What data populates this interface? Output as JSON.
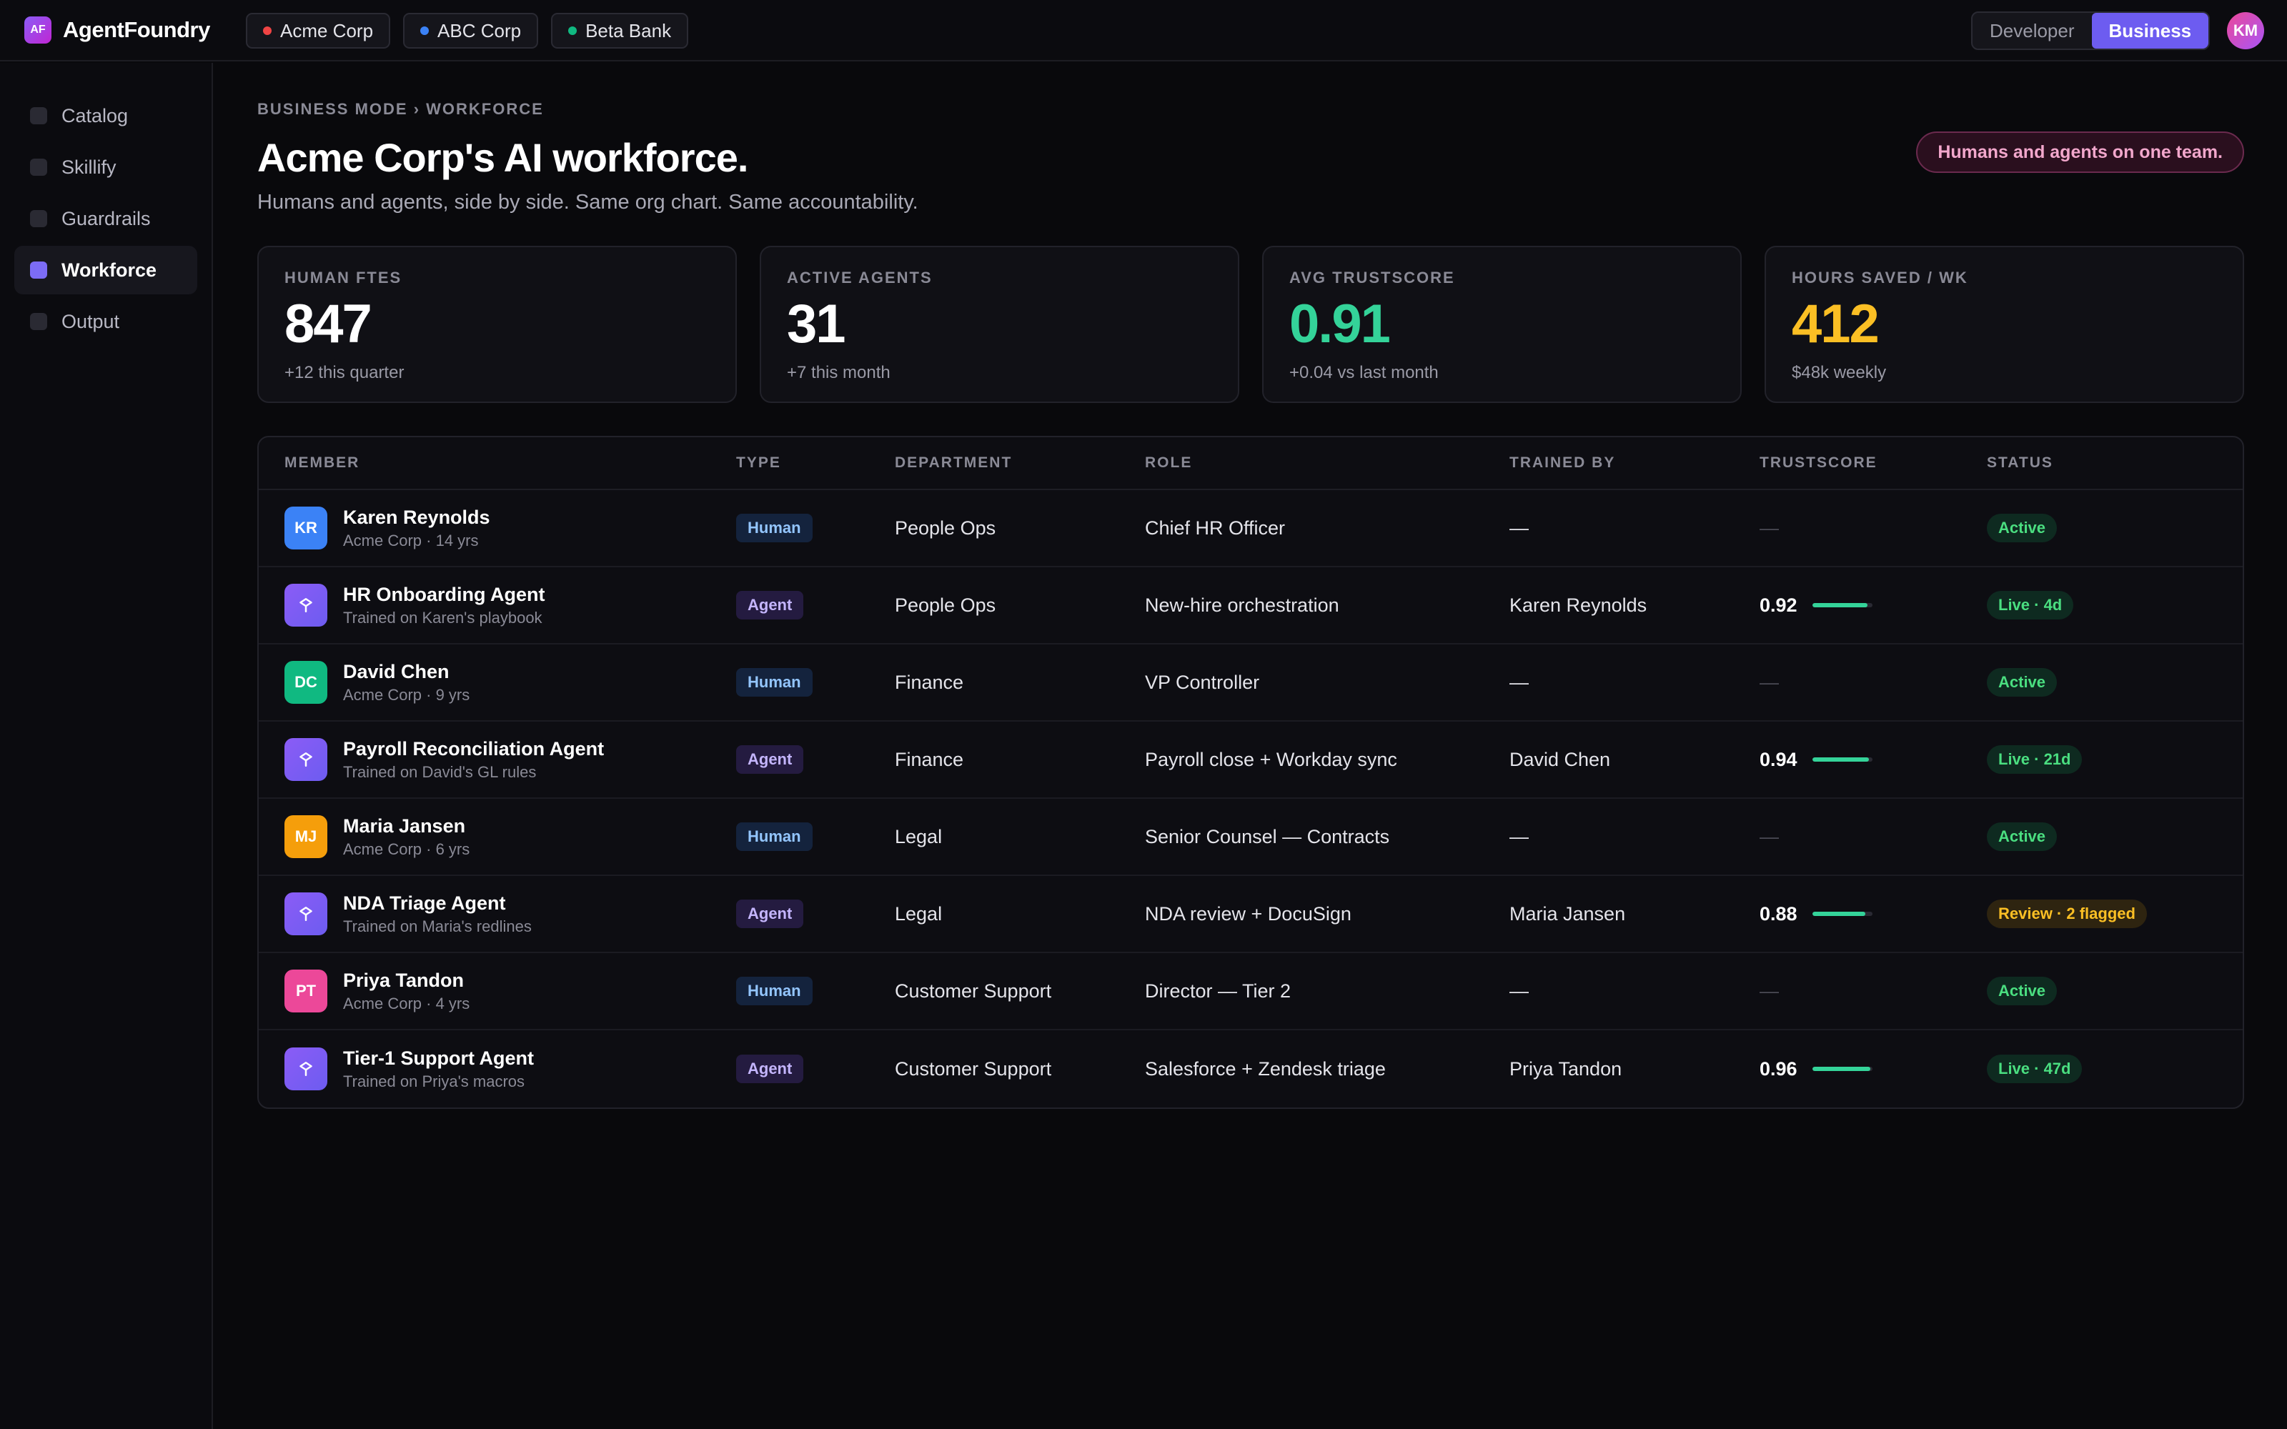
{
  "app": {
    "logo_mark": "AF",
    "name": "AgentFoundry"
  },
  "tenants": [
    {
      "label": "Acme Corp",
      "dot_color": "#ef4444"
    },
    {
      "label": "ABC Corp",
      "dot_color": "#3b82f6"
    },
    {
      "label": "Beta Bank",
      "dot_color": "#10b981"
    }
  ],
  "mode": {
    "developer": "Developer",
    "business": "Business",
    "selected": "Business"
  },
  "user": {
    "initials": "KM"
  },
  "sidebar": {
    "items": [
      {
        "label": "Catalog",
        "active": false
      },
      {
        "label": "Skillify",
        "active": false
      },
      {
        "label": "Guardrails",
        "active": false
      },
      {
        "label": "Workforce",
        "active": true
      },
      {
        "label": "Output",
        "active": false
      }
    ]
  },
  "header": {
    "breadcrumb": "BUSINESS MODE › WORKFORCE",
    "title": "Acme Corp's AI workforce.",
    "subtitle": "Humans and agents, side by side. Same org chart. Same accountability.",
    "pill": "Humans and agents on one team."
  },
  "stats": [
    {
      "label": "HUMAN FTES",
      "value": "847",
      "sub": "+12 this quarter",
      "color": "white"
    },
    {
      "label": "ACTIVE AGENTS",
      "value": "31",
      "sub": "+7 this month",
      "color": "white"
    },
    {
      "label": "AVG TRUSTSCORE",
      "value": "0.91",
      "sub": "+0.04 vs last month",
      "color": "green"
    },
    {
      "label": "HOURS SAVED / WK",
      "value": "412",
      "sub": "$48k weekly",
      "color": "amber"
    }
  ],
  "table": {
    "columns": [
      "MEMBER",
      "TYPE",
      "DEPARTMENT",
      "ROLE",
      "TRAINED BY",
      "TRUSTSCORE",
      "STATUS"
    ],
    "rows": [
      {
        "initials": "KR",
        "avatar_color": "#3b82f6",
        "kind": "human",
        "name": "Karen Reynolds",
        "sub": "Acme Corp · 14 yrs",
        "type": "Human",
        "department": "People Ops",
        "role": "Chief HR Officer",
        "trained_by": "—",
        "trust": "—",
        "trust_fraction": null,
        "status": "Active",
        "status_color": "green"
      },
      {
        "initials": "",
        "avatar_color": "#7c5cf5",
        "kind": "agent",
        "name": "HR Onboarding Agent",
        "sub": "Trained on Karen's playbook",
        "type": "Agent",
        "department": "People Ops",
        "role": "New-hire orchestration",
        "trained_by": "Karen Reynolds",
        "trust": "0.92",
        "trust_fraction": 0.92,
        "status": "Live · 4d",
        "status_color": "green"
      },
      {
        "initials": "DC",
        "avatar_color": "#10b981",
        "kind": "human",
        "name": "David Chen",
        "sub": "Acme Corp · 9 yrs",
        "type": "Human",
        "department": "Finance",
        "role": "VP Controller",
        "trained_by": "—",
        "trust": "—",
        "trust_fraction": null,
        "status": "Active",
        "status_color": "green"
      },
      {
        "initials": "",
        "avatar_color": "#7c5cf5",
        "kind": "agent",
        "name": "Payroll Reconciliation Agent",
        "sub": "Trained on David's GL rules",
        "type": "Agent",
        "department": "Finance",
        "role": "Payroll close + Workday sync",
        "trained_by": "David Chen",
        "trust": "0.94",
        "trust_fraction": 0.94,
        "status": "Live · 21d",
        "status_color": "green"
      },
      {
        "initials": "MJ",
        "avatar_color": "#f59e0b",
        "kind": "human",
        "name": "Maria Jansen",
        "sub": "Acme Corp · 6 yrs",
        "type": "Human",
        "department": "Legal",
        "role": "Senior Counsel — Contracts",
        "trained_by": "—",
        "trust": "—",
        "trust_fraction": null,
        "status": "Active",
        "status_color": "green"
      },
      {
        "initials": "",
        "avatar_color": "#7c5cf5",
        "kind": "agent",
        "name": "NDA Triage Agent",
        "sub": "Trained on Maria's redlines",
        "type": "Agent",
        "department": "Legal",
        "role": "NDA review + DocuSign",
        "trained_by": "Maria Jansen",
        "trust": "0.88",
        "trust_fraction": 0.88,
        "status": "Review · 2 flagged",
        "status_color": "amber"
      },
      {
        "initials": "PT",
        "avatar_color": "#ec4899",
        "kind": "human",
        "name": "Priya Tandon",
        "sub": "Acme Corp · 4 yrs",
        "type": "Human",
        "department": "Customer Support",
        "role": "Director — Tier 2",
        "trained_by": "—",
        "trust": "—",
        "trust_fraction": null,
        "status": "Active",
        "status_color": "green"
      },
      {
        "initials": "",
        "avatar_color": "#7c5cf5",
        "kind": "agent",
        "name": "Tier-1 Support Agent",
        "sub": "Trained on Priya's macros",
        "type": "Agent",
        "department": "Customer Support",
        "role": "Salesforce + Zendesk triage",
        "trained_by": "Priya Tandon",
        "trust": "0.96",
        "trust_fraction": 0.96,
        "status": "Live · 47d",
        "status_color": "green"
      }
    ]
  }
}
